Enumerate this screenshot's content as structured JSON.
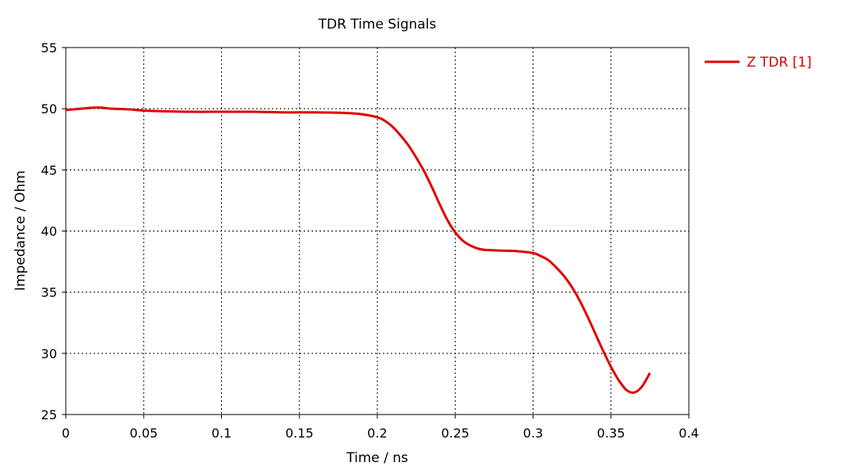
{
  "chart_data": {
    "type": "line",
    "title": "TDR Time Signals",
    "xlabel": "Time / ns",
    "ylabel": "Impedance / Ohm",
    "xlim": [
      0,
      0.4
    ],
    "ylim": [
      25,
      55
    ],
    "xticks": [
      "0",
      "0.05",
      "0.1",
      "0.15",
      "0.2",
      "0.25",
      "0.3",
      "0.35",
      "0.4"
    ],
    "yticks": [
      "25",
      "30",
      "35",
      "40",
      "45",
      "50",
      "55"
    ],
    "grid": true,
    "legend_position": "right",
    "series": [
      {
        "name": "Z TDR [1]",
        "color": "#e00000",
        "x": [
          0,
          0.01,
          0.02,
          0.03,
          0.04,
          0.05,
          0.06,
          0.08,
          0.1,
          0.12,
          0.14,
          0.16,
          0.18,
          0.19,
          0.2,
          0.205,
          0.21,
          0.215,
          0.22,
          0.225,
          0.23,
          0.235,
          0.24,
          0.245,
          0.25,
          0.255,
          0.26,
          0.265,
          0.27,
          0.28,
          0.29,
          0.3,
          0.305,
          0.31,
          0.315,
          0.32,
          0.325,
          0.33,
          0.335,
          0.34,
          0.345,
          0.35,
          0.355,
          0.36,
          0.365,
          0.37,
          0.375
        ],
        "y": [
          49.9,
          50.0,
          50.1,
          50.0,
          49.95,
          49.85,
          49.8,
          49.75,
          49.75,
          49.75,
          49.7,
          49.7,
          49.65,
          49.55,
          49.3,
          49.0,
          48.5,
          47.8,
          47.0,
          46.0,
          44.9,
          43.6,
          42.2,
          40.9,
          39.9,
          39.2,
          38.8,
          38.55,
          38.45,
          38.4,
          38.35,
          38.2,
          37.95,
          37.6,
          37.0,
          36.3,
          35.4,
          34.3,
          33.0,
          31.6,
          30.2,
          28.9,
          27.8,
          27.0,
          26.8,
          27.3,
          28.4
        ]
      }
    ]
  }
}
